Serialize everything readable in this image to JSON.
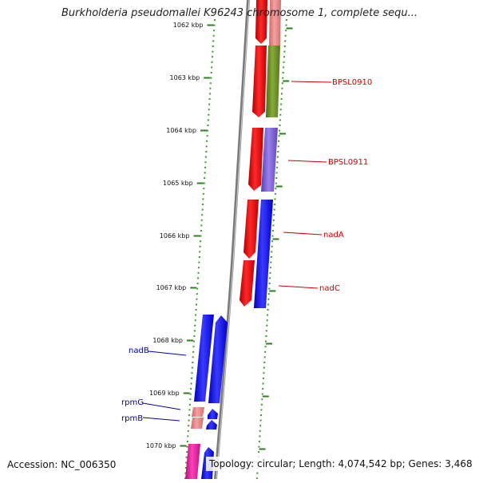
{
  "title": "Burkholderia pseudomallei K96243 chromosome 1, complete sequ...",
  "accession_text": "Accession: NC_006350",
  "summary_text": "Topology: circular; Length: 4,074,542 bp; Genes: 3,468",
  "ruler_labels": [
    "1062 kbp",
    "1063 kbp",
    "1064 kbp",
    "1065 kbp",
    "1066 kbp",
    "1067 kbp",
    "1068 kbp",
    "1069 kbp",
    "1070 kbp"
  ],
  "gene_labels": {
    "BPSL0910": "BPSL0910",
    "BPSL0911": "BPSL0911",
    "nadA": "nadA",
    "nadC": "nadC",
    "nadB": "nadB",
    "rpmG": "rpmG",
    "rpmB": "rpmB"
  },
  "colors": {
    "backbone": "#8c8c8c",
    "tick_major": "#2e7d1f",
    "tick_minor": "#3a9a2a",
    "feature_red": "#e01010",
    "feature_pink": "#e88080",
    "feature_olive": "#6b8e23",
    "feature_purple": "#7a5fd0",
    "feature_blue": "#0a0af0",
    "feature_magenta": "#e0189a",
    "label_red": "#cc0000",
    "label_blue": "#0000aa"
  }
}
